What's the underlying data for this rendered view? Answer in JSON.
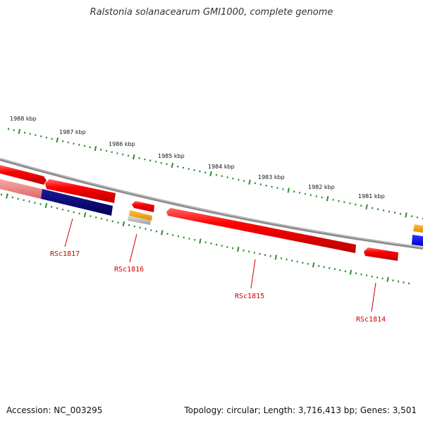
{
  "title": "Ralstonia solanacearum GMI1000, complete genome",
  "colors": {
    "backbone": "#888888",
    "tick": "#2e8b2e",
    "gene_red": "#ff0000",
    "gene_navy": "#0a0a7a",
    "gene_blue": "#0000ff",
    "gene_orange": "#f5a000",
    "gene_grey": "#bdbdbd",
    "gene_pink": "#f08080",
    "label_red": "#cc0000"
  },
  "scale_labels": [
    {
      "id": "1988",
      "text": "1988 kbp"
    },
    {
      "id": "1987",
      "text": "1987 kbp"
    },
    {
      "id": "1986",
      "text": "1986 kbp"
    },
    {
      "id": "1985",
      "text": "1985 kbp"
    },
    {
      "id": "1984",
      "text": "1984 kbp"
    },
    {
      "id": "1983",
      "text": "1983 kbp"
    },
    {
      "id": "1982",
      "text": "1982 kbp"
    },
    {
      "id": "1981",
      "text": "1981 kbp"
    }
  ],
  "gene_labels": [
    {
      "id": "RSc1817",
      "text": "RSc1817"
    },
    {
      "id": "RSc1816",
      "text": "RSc1816"
    },
    {
      "id": "RSc1815",
      "text": "RSc1815"
    },
    {
      "id": "RSc1814",
      "text": "RSc1814"
    }
  ],
  "footer": {
    "accession": "Accession: NC_003295",
    "summary": "Topology: circular; Length: 3,716,413 bp; Genes: 3,501"
  }
}
